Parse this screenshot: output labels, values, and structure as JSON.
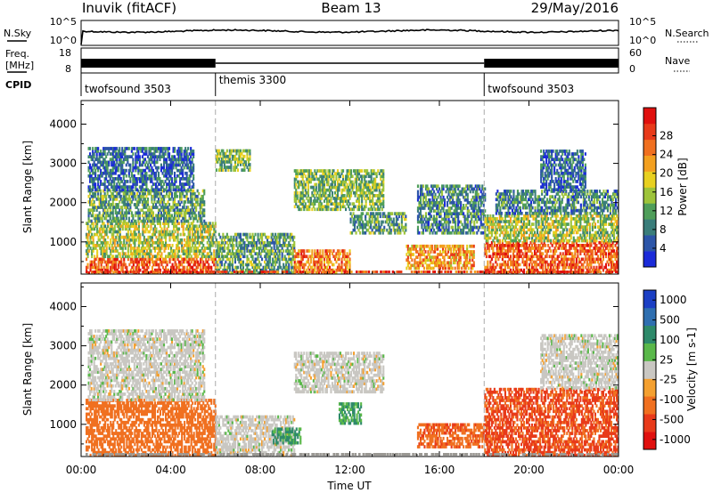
{
  "header": {
    "station": "Inuvik (fitACF)",
    "beam": "Beam 13",
    "date": "29/May/2016"
  },
  "noise_panel": {
    "left_label": "N.Sky",
    "left_ticks": [
      "10^5",
      "10^0"
    ],
    "right_ticks": [
      "10^5",
      "10^0"
    ],
    "right_label": "N.Search"
  },
  "freq_panel": {
    "left_label_line1": "Freq.",
    "left_label_line2": "[MHz]",
    "left_ticks": [
      "18",
      "8"
    ],
    "right_ticks": [
      "60",
      "0"
    ],
    "right_label": "Nave"
  },
  "cpid": {
    "label": "CPID",
    "segments": [
      {
        "name": "twofsound 3503",
        "start_hour": 0
      },
      {
        "name": "themis 3300",
        "start_hour": 6
      },
      {
        "name": "twofsound 3503",
        "start_hour": 18
      }
    ]
  },
  "chart_data": [
    {
      "type": "heatmap",
      "panel": "power",
      "ylabel": "Slant Range [km]",
      "y_ticks": [
        1000,
        2000,
        3000,
        4000
      ],
      "ylim": [
        180,
        4600
      ],
      "colorbar_label": "Power [dB]",
      "colorbar_ticks": [
        "4",
        "8",
        "12",
        "16",
        "20",
        "24",
        "28"
      ],
      "colorbar_range": [
        0,
        30
      ],
      "colors": [
        "#1b2bd9",
        "#2c55a8",
        "#3a7d7a",
        "#4f9e5a",
        "#9ec43a",
        "#e8d020",
        "#f3a020",
        "#f07020",
        "#e83a1a",
        "#e0100e"
      ],
      "regions": [
        {
          "t": [
            0.2,
            6.0
          ],
          "r": [
            180,
            600
          ],
          "level": 24
        },
        {
          "t": [
            0.2,
            6.0
          ],
          "r": [
            600,
            1500
          ],
          "level": 14
        },
        {
          "t": [
            0.3,
            5.5
          ],
          "r": [
            1500,
            2300
          ],
          "level": 10
        },
        {
          "t": [
            0.3,
            5.0
          ],
          "r": [
            2300,
            3400
          ],
          "level": 6
        },
        {
          "t": [
            6.0,
            7.5
          ],
          "r": [
            2800,
            3300
          ],
          "level": 12
        },
        {
          "t": [
            6.0,
            9.5
          ],
          "r": [
            180,
            1200
          ],
          "level": 10
        },
        {
          "t": [
            9.5,
            12.0
          ],
          "r": [
            180,
            800
          ],
          "level": 22
        },
        {
          "t": [
            9.5,
            13.5
          ],
          "r": [
            1800,
            2800
          ],
          "level": 12
        },
        {
          "t": [
            12.0,
            14.5
          ],
          "r": [
            1200,
            1700
          ],
          "level": 10
        },
        {
          "t": [
            14.5,
            17.5
          ],
          "r": [
            300,
            900
          ],
          "level": 20
        },
        {
          "t": [
            15.0,
            18.0
          ],
          "r": [
            1200,
            2400
          ],
          "level": 8
        },
        {
          "t": [
            18.0,
            24.0
          ],
          "r": [
            180,
            1000
          ],
          "level": 24
        },
        {
          "t": [
            18.0,
            24.0
          ],
          "r": [
            1000,
            1700
          ],
          "level": 14
        },
        {
          "t": [
            18.5,
            24.0
          ],
          "r": [
            1700,
            2300
          ],
          "level": 8
        },
        {
          "t": [
            20.5,
            22.5
          ],
          "r": [
            2300,
            3300
          ],
          "level": 6
        }
      ]
    },
    {
      "type": "heatmap",
      "panel": "velocity",
      "ylabel": "Slant Range [km]",
      "y_ticks": [
        1000,
        2000,
        3000,
        4000
      ],
      "ylim": [
        180,
        4600
      ],
      "colorbar_label": "Velocity [m s-1]",
      "colorbar_ticks": [
        "1000",
        "500",
        "100",
        "25",
        "-25",
        "-100",
        "-500",
        "-1000"
      ],
      "colorbar_range": [
        -1200,
        1200
      ],
      "colors": [
        "#1b3fc4",
        "#2f6fb0",
        "#2e8a6a",
        "#5ab84a",
        "#c9c7c2",
        "#f4a030",
        "#f07020",
        "#e83a1a",
        "#e0100e"
      ],
      "regions": [
        {
          "t": [
            0.2,
            6.0
          ],
          "r": [
            180,
            1600
          ],
          "value": -300
        },
        {
          "t": [
            0.3,
            5.5
          ],
          "r": [
            1600,
            3400
          ],
          "value": 0
        },
        {
          "t": [
            6.0,
            9.5
          ],
          "r": [
            180,
            1200
          ],
          "value": 0
        },
        {
          "t": [
            8.5,
            9.8
          ],
          "r": [
            500,
            900
          ],
          "value": 150
        },
        {
          "t": [
            9.5,
            13.5
          ],
          "r": [
            1800,
            2800
          ],
          "value": 0
        },
        {
          "t": [
            11.5,
            12.5
          ],
          "r": [
            1000,
            1500
          ],
          "value": 100
        },
        {
          "t": [
            15.0,
            18.0
          ],
          "r": [
            400,
            1000
          ],
          "value": -400
        },
        {
          "t": [
            18.0,
            24.0
          ],
          "r": [
            180,
            1900
          ],
          "value": -600
        },
        {
          "t": [
            20.5,
            24.0
          ],
          "r": [
            1900,
            3300
          ],
          "value": 0
        }
      ]
    }
  ],
  "x_axis": {
    "tick_labels": [
      "00:00",
      "04:00",
      "08:00",
      "12:00",
      "16:00",
      "20:00",
      "00:00"
    ],
    "label": "Time UT",
    "range_hours": [
      0,
      24
    ]
  }
}
